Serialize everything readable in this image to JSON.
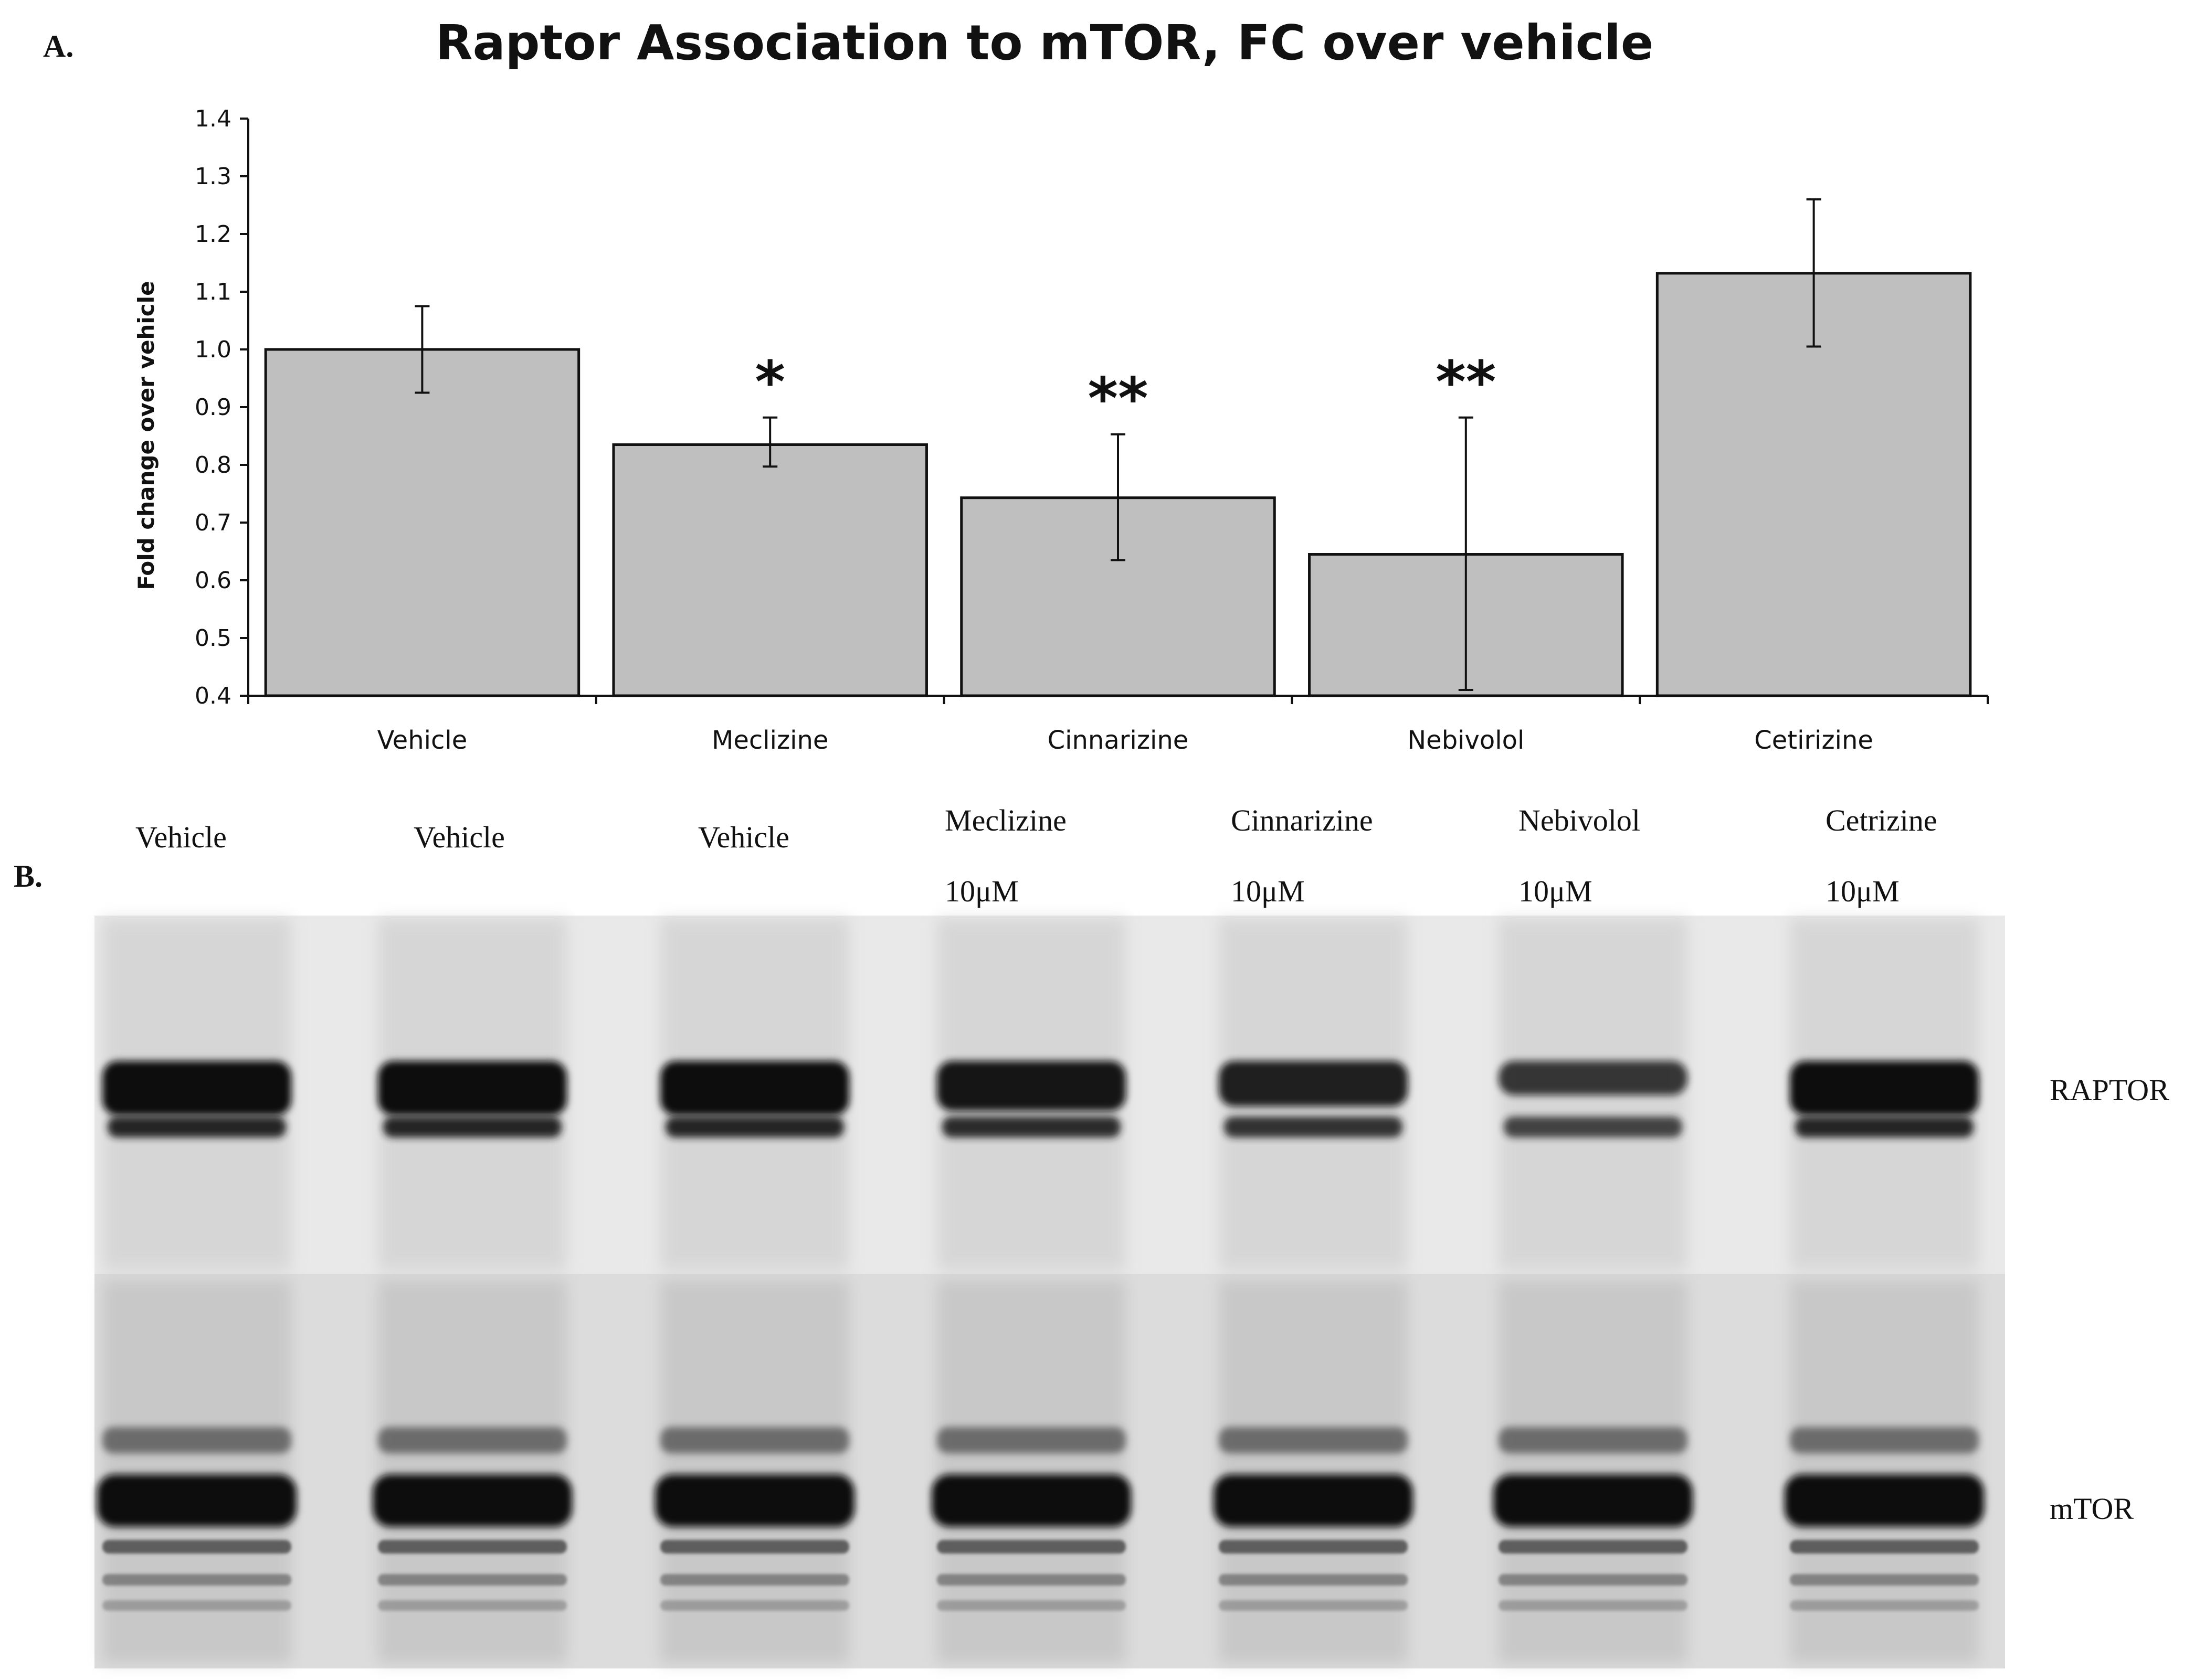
{
  "panel_a_label": "A.",
  "panel_b_label": "B.",
  "chart_data": {
    "type": "bar",
    "title": "Raptor Association to mTOR, FC over vehicle",
    "ylabel": "Fold change over vehicle",
    "xlabel": "",
    "ylim": [
      0.4,
      1.4
    ],
    "yticks": [
      "0.4",
      "0.5",
      "0.6",
      "0.7",
      "0.8",
      "0.9",
      "1.0",
      "1.1",
      "1.2",
      "1.3",
      "1.4"
    ],
    "categories": [
      "Vehicle",
      "Meclizine",
      "Cinnarizine",
      "Nebivolol",
      "Cetirizine"
    ],
    "values": [
      1.0,
      0.835,
      0.743,
      0.645,
      1.132
    ],
    "error_low": [
      0.925,
      0.797,
      0.635,
      0.41,
      1.005
    ],
    "error_high": [
      1.075,
      0.882,
      0.853,
      0.882,
      1.26
    ],
    "significance": [
      "",
      "*",
      "**",
      "**",
      ""
    ],
    "bar_color": "#bfbfbf",
    "grid": false
  },
  "blot": {
    "lanes": [
      {
        "name": "Vehicle",
        "conc": ""
      },
      {
        "name": "Vehicle",
        "conc": ""
      },
      {
        "name": "Vehicle",
        "conc": ""
      },
      {
        "name": "Meclizine",
        "conc": "10μM"
      },
      {
        "name": "Cinnarizine",
        "conc": "10μM"
      },
      {
        "name": "Nebivolol",
        "conc": "10μM"
      },
      {
        "name": "Cetrizine",
        "conc": "10μM"
      }
    ],
    "bands": [
      "RAPTOR",
      "mTOR"
    ]
  }
}
